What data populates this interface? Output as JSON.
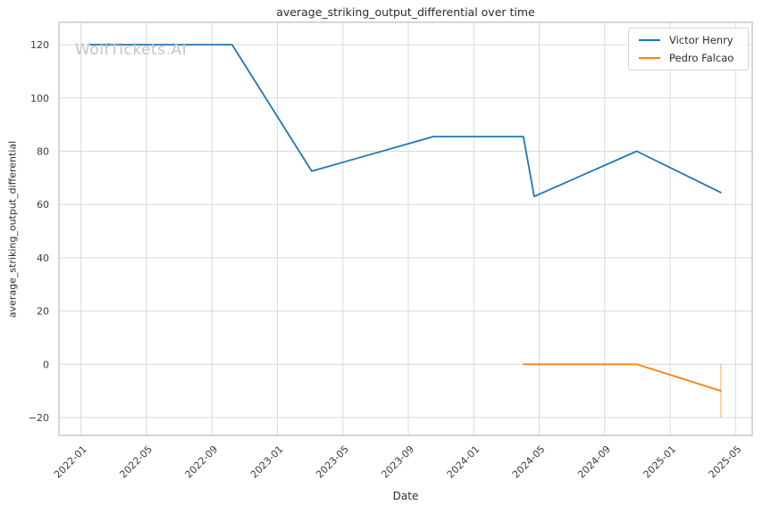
{
  "watermark": "WolfTickets.AI",
  "colors": {
    "grid": "#d9d9d9",
    "spine": "#c0c0c0",
    "tick_text": "#3c3c3c",
    "text": "#2b2b2b",
    "watermark": "#c4c4c4",
    "error_bar": "rgba(255,127,14,0.45)"
  },
  "chart_data": {
    "type": "line",
    "title": "average_striking_output_differential over time",
    "xlabel": "Date",
    "ylabel": "average_striking_output_differential",
    "grid": true,
    "legend_position": "upper right",
    "x_tick_labels": [
      "2022-01",
      "2022-05",
      "2022-09",
      "2023-01",
      "2023-05",
      "2023-09",
      "2024-01",
      "2024-05",
      "2024-09",
      "2025-01",
      "2025-05"
    ],
    "y_ticks": [
      -20,
      0,
      20,
      40,
      60,
      80,
      100,
      120
    ],
    "xlim_months_from_2022_01": [
      -1.35,
      41.02
    ],
    "ylim": [
      -26.7,
      128.4
    ],
    "series": [
      {
        "name": "Victor Henry",
        "color": "#1f77b4",
        "points": [
          {
            "date": "2022-01-18",
            "value": 120
          },
          {
            "date": "2022-10-08",
            "value": 120
          },
          {
            "date": "2023-03-04",
            "value": 72.5
          },
          {
            "date": "2023-10-17",
            "value": 85.5
          },
          {
            "date": "2024-04-02",
            "value": 85.5
          },
          {
            "date": "2024-04-22",
            "value": 63
          },
          {
            "date": "2024-10-30",
            "value": 80
          },
          {
            "date": "2025-04-04",
            "value": 64.5
          }
        ]
      },
      {
        "name": "Pedro Falcao",
        "color": "#ff7f0e",
        "points": [
          {
            "date": "2024-04-02",
            "value": 0
          },
          {
            "date": "2024-10-30",
            "value": 0
          },
          {
            "date": "2025-04-04",
            "value": -10
          }
        ],
        "error_bars": [
          {
            "date": "2025-04-04",
            "low": -20,
            "high": 0
          }
        ]
      }
    ]
  }
}
